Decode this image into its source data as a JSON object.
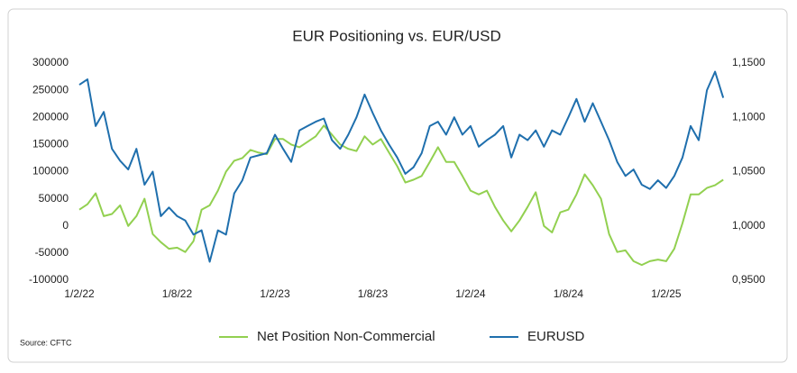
{
  "chart_data": {
    "type": "line",
    "title": "EUR Positioning vs. EUR/USD",
    "source": "Source: CFTC",
    "categories": [
      "1/2/22",
      null,
      null,
      null,
      null,
      null,
      null,
      null,
      null,
      null,
      null,
      null,
      "1/8/22",
      null,
      null,
      null,
      null,
      null,
      null,
      null,
      null,
      null,
      null,
      null,
      "1/2/23",
      null,
      null,
      null,
      null,
      null,
      null,
      null,
      null,
      null,
      null,
      null,
      "1/8/23",
      null,
      null,
      null,
      null,
      null,
      null,
      null,
      null,
      null,
      null,
      null,
      "1/2/24",
      null,
      null,
      null,
      null,
      null,
      null,
      null,
      null,
      null,
      null,
      null,
      "1/8/24",
      null,
      null,
      null,
      null,
      null,
      null,
      null,
      null,
      null,
      null,
      null,
      "1/2/25",
      null,
      null,
      null,
      null,
      null,
      null,
      null
    ],
    "series": [
      {
        "name": "Net Position Non-Commercial",
        "color": "#92d050",
        "axis": "y",
        "values": [
          30000,
          40000,
          60000,
          18000,
          22000,
          38000,
          0,
          18000,
          50000,
          -15000,
          -30000,
          -42000,
          -40000,
          -48000,
          -28000,
          30000,
          38000,
          65000,
          100000,
          120000,
          125000,
          140000,
          135000,
          132000,
          160000,
          160000,
          150000,
          145000,
          155000,
          165000,
          185000,
          168000,
          150000,
          142000,
          138000,
          165000,
          150000,
          160000,
          135000,
          110000,
          80000,
          85000,
          92000,
          118000,
          145000,
          118000,
          118000,
          92000,
          65000,
          58000,
          65000,
          35000,
          10000,
          -10000,
          10000,
          35000,
          62000,
          0,
          -12000,
          25000,
          30000,
          58000,
          95000,
          75000,
          50000,
          -15000,
          -48000,
          -45000,
          -65000,
          -72000,
          -65000,
          -62000,
          -65000,
          -42000,
          5000,
          58000,
          58000,
          70000,
          75000,
          85000
        ]
      },
      {
        "name": "EURUSD",
        "color": "#1f6fad",
        "axis": "y2",
        "values": [
          1.13,
          1.135,
          1.092,
          1.105,
          1.071,
          1.06,
          1.052,
          1.071,
          1.038,
          1.05,
          1.009,
          1.017,
          1.009,
          1.005,
          0.992,
          0.996,
          0.967,
          0.996,
          0.992,
          1.03,
          1.042,
          1.063,
          1.065,
          1.067,
          1.084,
          1.071,
          1.059,
          1.088,
          1.092,
          1.096,
          1.099,
          1.079,
          1.071,
          1.084,
          1.1,
          1.121,
          1.104,
          1.088,
          1.075,
          1.063,
          1.048,
          1.054,
          1.067,
          1.092,
          1.096,
          1.084,
          1.1,
          1.084,
          1.092,
          1.073,
          1.079,
          1.084,
          1.092,
          1.063,
          1.084,
          1.079,
          1.088,
          1.073,
          1.088,
          1.084,
          1.1,
          1.117,
          1.096,
          1.113,
          1.096,
          1.079,
          1.059,
          1.046,
          1.052,
          1.038,
          1.034,
          1.042,
          1.035,
          1.046,
          1.063,
          1.092,
          1.079,
          1.125,
          1.142,
          1.118
        ]
      }
    ],
    "ylim": [
      -100000,
      300000
    ],
    "yticks": [
      -100000,
      -50000,
      0,
      50000,
      100000,
      150000,
      200000,
      250000,
      300000
    ],
    "y2lim": [
      0.95,
      1.15
    ],
    "y2ticks": [
      {
        "value": 0.95,
        "label": "0,9500"
      },
      {
        "value": 1.0,
        "label": "1,0000"
      },
      {
        "value": 1.05,
        "label": "1,0500"
      },
      {
        "value": 1.1,
        "label": "1,1000"
      },
      {
        "value": 1.15,
        "label": "1,1500"
      }
    ],
    "grid": false,
    "legend": "bottom"
  }
}
